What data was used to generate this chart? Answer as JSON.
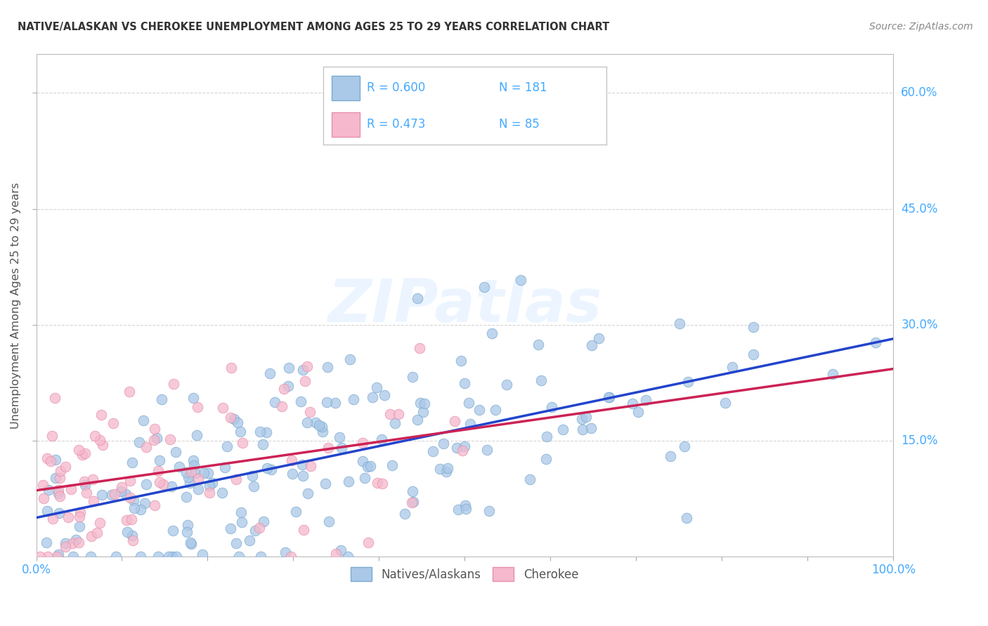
{
  "title": "NATIVE/ALASKAN VS CHEROKEE UNEMPLOYMENT AMONG AGES 25 TO 29 YEARS CORRELATION CHART",
  "source": "Source: ZipAtlas.com",
  "ylabel": "Unemployment Among Ages 25 to 29 years",
  "xlim": [
    0,
    1.0
  ],
  "ylim": [
    0,
    0.65
  ],
  "ytick_labels": [
    "15.0%",
    "30.0%",
    "45.0%",
    "60.0%"
  ],
  "ytick_positions": [
    0.15,
    0.3,
    0.45,
    0.6
  ],
  "native_color": "#aac8e8",
  "cherokee_color": "#f5b8cc",
  "native_edge_color": "#7aaad0",
  "cherokee_edge_color": "#e890aa",
  "native_line_color": "#2244cc",
  "cherokee_line_color": "#cc2255",
  "R_native": 0.6,
  "N_native": 181,
  "R_cherokee": 0.473,
  "N_cherokee": 85,
  "background_color": "#ffffff",
  "grid_color": "#cccccc",
  "title_color": "#333333",
  "axis_label_color": "#44aaff",
  "watermark": "ZIPatlas",
  "watermark_color": "#ddeeff",
  "legend_label_native": "Natives/Alaskans",
  "legend_label_cherokee": "Cherokee",
  "legend_text_color": "#44aaff"
}
